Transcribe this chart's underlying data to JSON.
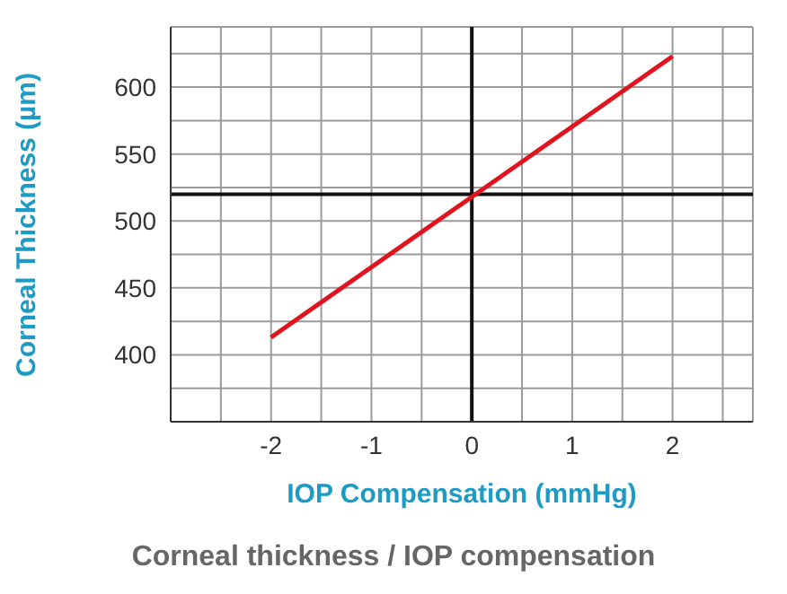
{
  "chart_data": {
    "type": "line",
    "xlabel": "IOP Compensation (mmHg)",
    "ylabel": "Corneal Thickness (µm)",
    "x": [
      -2,
      2
    ],
    "series": [
      {
        "color": "#e0141e",
        "values": [
          413,
          623
        ]
      }
    ],
    "xlim": [
      -3,
      2.8
    ],
    "xticks": [
      {
        "value": -2.5,
        "label": null
      },
      -2,
      {
        "value": -1.5,
        "label": null
      },
      -1,
      {
        "value": -0.5,
        "label": null
      },
      0,
      {
        "value": 0.5,
        "label": null
      },
      1,
      {
        "value": 1.5,
        "label": null
      },
      2,
      {
        "value": 2.5,
        "label": null
      }
    ],
    "ylim": [
      350,
      645
    ],
    "yticks": [
      {
        "value": 375,
        "label": null
      },
      400,
      {
        "value": 425,
        "label": null
      },
      450,
      {
        "value": 475,
        "label": null
      },
      500,
      {
        "value": 525,
        "label": null
      },
      550,
      {
        "value": 575,
        "label": null
      },
      600,
      {
        "value": 625,
        "label": null
      }
    ],
    "ref_lines": [
      {
        "axis": "y",
        "value": 520,
        "color": "#111111"
      },
      {
        "axis": "x",
        "value": 0,
        "color": "#111111"
      }
    ],
    "grid": true,
    "marker": "none",
    "line_style": "solid",
    "legend": false,
    "annotations": [
      "Corneal thickness / IOP compensation"
    ]
  }
}
